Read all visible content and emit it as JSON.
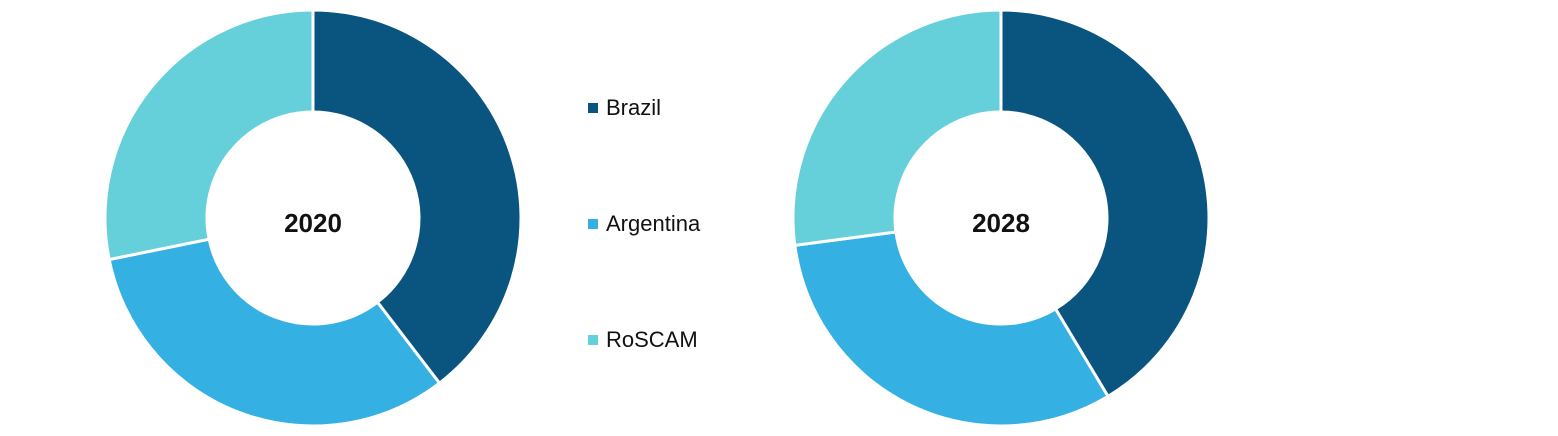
{
  "chart_data": [
    {
      "type": "donut",
      "title": "2020",
      "categories": [
        "Brazil",
        "Argentina",
        "RoSCAM"
      ],
      "values": [
        39.6,
        32.2,
        28.2
      ],
      "colors": [
        "#0a5480",
        "#35b0e2",
        "#65d0da"
      ],
      "legend": "middle"
    },
    {
      "type": "donut",
      "title": "2028",
      "categories": [
        "Brazil",
        "Argentina",
        "RoSCAM"
      ],
      "values": [
        41.4,
        31.5,
        27.1
      ],
      "colors": [
        "#0a5480",
        "#35b0e2",
        "#65d0da"
      ]
    }
  ]
}
